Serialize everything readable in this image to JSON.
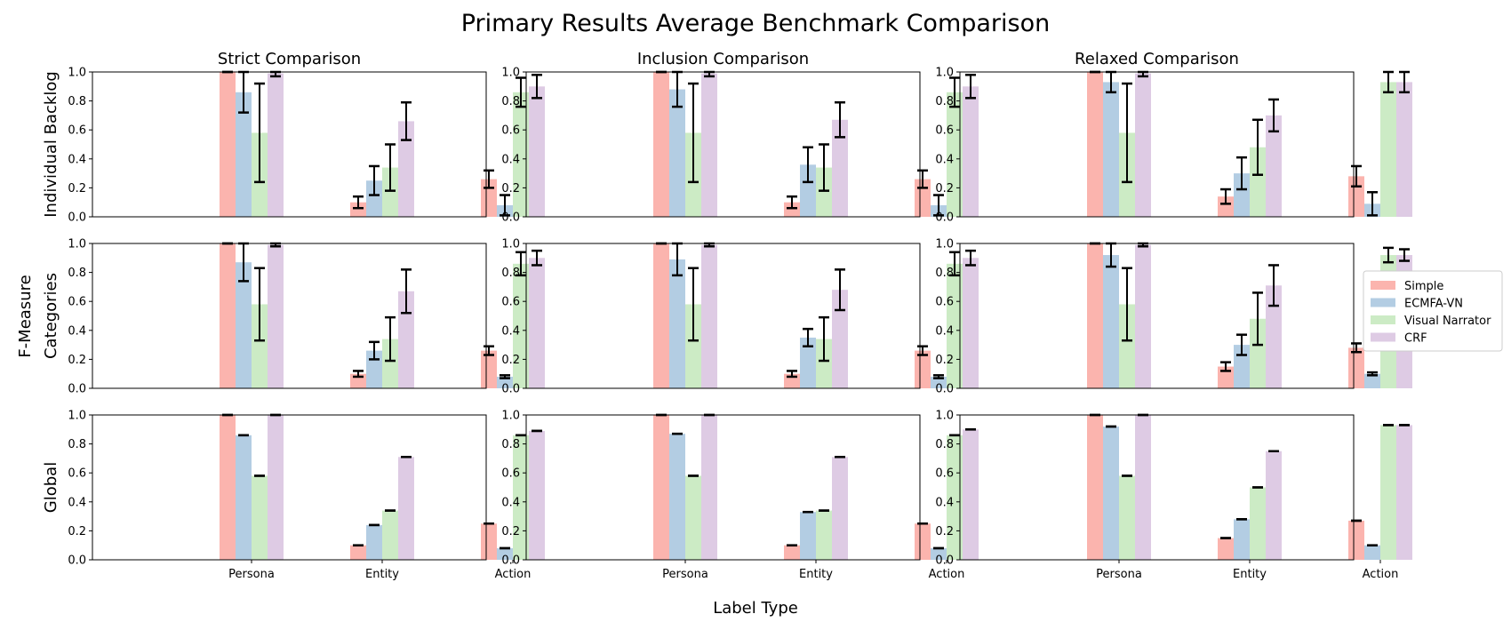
{
  "chart_data": {
    "type": "bar",
    "title": "Primary Results Average Benchmark Comparison",
    "xlabel": "Label Type",
    "ylabel": "F-Measure",
    "categories": [
      "Persona",
      "Entity",
      "Action"
    ],
    "ylim": [
      0,
      1
    ],
    "yticks": [
      "0.0",
      "0.2",
      "0.4",
      "0.6",
      "0.8",
      "1.0"
    ],
    "columns": [
      "Strict Comparison",
      "Inclusion Comparison",
      "Relaxed Comparison"
    ],
    "rows": [
      "Individual Backlog",
      "Categories",
      "Global"
    ],
    "legend_position": "center-right",
    "grid": false,
    "series": [
      {
        "name": "Simple",
        "color": "#fbb4ae"
      },
      {
        "name": "ECMFA-VN",
        "color": "#b3cde3"
      },
      {
        "name": "Visual Narrator",
        "color": "#ccebc5"
      },
      {
        "name": "CRF",
        "color": "#decbe4"
      }
    ],
    "panels": [
      [
        {
          "values": [
            [
              1.0,
              0.86,
              0.58,
              0.99
            ],
            [
              0.1,
              0.25,
              0.34,
              0.66
            ],
            [
              0.26,
              0.08,
              0.86,
              0.9
            ]
          ],
          "errors": [
            [
              0.0,
              0.14,
              0.34,
              0.02
            ],
            [
              0.04,
              0.1,
              0.16,
              0.13
            ],
            [
              0.06,
              0.07,
              0.1,
              0.08
            ]
          ]
        },
        {
          "values": [
            [
              1.0,
              0.88,
              0.58,
              0.99
            ],
            [
              0.1,
              0.36,
              0.34,
              0.67
            ],
            [
              0.26,
              0.08,
              0.86,
              0.9
            ]
          ],
          "errors": [
            [
              0.0,
              0.12,
              0.34,
              0.02
            ],
            [
              0.04,
              0.12,
              0.16,
              0.12
            ],
            [
              0.06,
              0.07,
              0.1,
              0.08
            ]
          ]
        },
        {
          "values": [
            [
              1.0,
              0.93,
              0.58,
              0.99
            ],
            [
              0.14,
              0.3,
              0.48,
              0.7
            ],
            [
              0.28,
              0.09,
              0.93,
              0.93
            ]
          ],
          "errors": [
            [
              0.0,
              0.07,
              0.34,
              0.02
            ],
            [
              0.05,
              0.11,
              0.19,
              0.11
            ],
            [
              0.07,
              0.08,
              0.07,
              0.07
            ]
          ]
        }
      ],
      [
        {
          "values": [
            [
              1.0,
              0.87,
              0.58,
              0.99
            ],
            [
              0.1,
              0.26,
              0.34,
              0.67
            ],
            [
              0.26,
              0.08,
              0.86,
              0.9
            ]
          ],
          "errors": [
            [
              0.0,
              0.13,
              0.25,
              0.01
            ],
            [
              0.02,
              0.06,
              0.15,
              0.15
            ],
            [
              0.03,
              0.01,
              0.08,
              0.05
            ]
          ]
        },
        {
          "values": [
            [
              1.0,
              0.89,
              0.58,
              0.99
            ],
            [
              0.1,
              0.35,
              0.34,
              0.68
            ],
            [
              0.26,
              0.08,
              0.86,
              0.9
            ]
          ],
          "errors": [
            [
              0.0,
              0.11,
              0.25,
              0.01
            ],
            [
              0.02,
              0.06,
              0.15,
              0.14
            ],
            [
              0.03,
              0.01,
              0.08,
              0.05
            ]
          ]
        },
        {
          "values": [
            [
              1.0,
              0.92,
              0.58,
              0.99
            ],
            [
              0.15,
              0.3,
              0.48,
              0.71
            ],
            [
              0.28,
              0.1,
              0.92,
              0.92
            ]
          ],
          "errors": [
            [
              0.0,
              0.08,
              0.25,
              0.01
            ],
            [
              0.03,
              0.07,
              0.18,
              0.14
            ],
            [
              0.03,
              0.01,
              0.05,
              0.04
            ]
          ]
        }
      ],
      [
        {
          "values": [
            [
              1.0,
              0.86,
              0.58,
              1.0
            ],
            [
              0.1,
              0.24,
              0.34,
              0.71
            ],
            [
              0.25,
              0.08,
              0.86,
              0.89
            ]
          ],
          "errors": [
            [
              0.0,
              0.0,
              0.0,
              0.0
            ],
            [
              0.0,
              0.0,
              0.0,
              0.0
            ],
            [
              0.0,
              0.0,
              0.0,
              0.0
            ]
          ]
        },
        {
          "values": [
            [
              1.0,
              0.87,
              0.58,
              1.0
            ],
            [
              0.1,
              0.33,
              0.34,
              0.71
            ],
            [
              0.25,
              0.08,
              0.86,
              0.9
            ]
          ],
          "errors": [
            [
              0.0,
              0.0,
              0.0,
              0.0
            ],
            [
              0.0,
              0.0,
              0.0,
              0.0
            ],
            [
              0.0,
              0.0,
              0.0,
              0.0
            ]
          ]
        },
        {
          "values": [
            [
              1.0,
              0.92,
              0.58,
              1.0
            ],
            [
              0.15,
              0.28,
              0.5,
              0.75
            ],
            [
              0.27,
              0.1,
              0.93,
              0.93
            ]
          ],
          "errors": [
            [
              0.0,
              0.0,
              0.0,
              0.0
            ],
            [
              0.0,
              0.0,
              0.0,
              0.0
            ],
            [
              0.0,
              0.0,
              0.0,
              0.0
            ]
          ]
        }
      ]
    ]
  }
}
